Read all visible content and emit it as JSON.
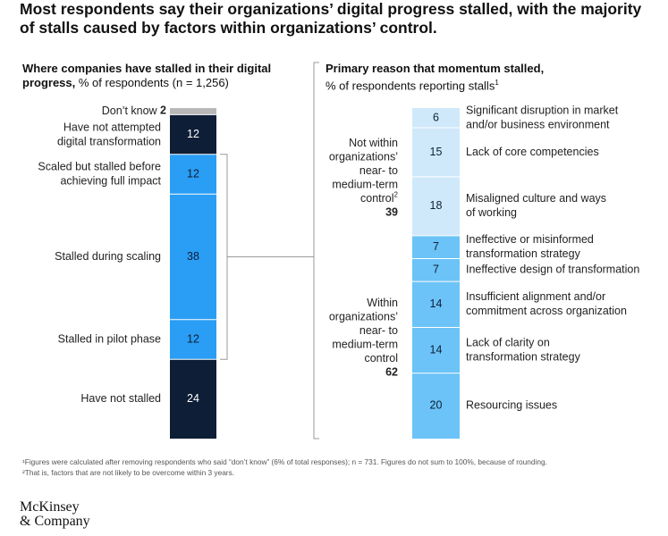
{
  "title": "Most respondents say their organizations’ digital progress stalled, with the majority of stalls caused by factors within organizations’ control.",
  "chart_data": [
    {
      "type": "stacked-bar",
      "title_bold": "Where companies have stalled in their digital progress,",
      "title_rest": " % of respondents (n = 1,256)",
      "segments": [
        {
          "label": [
            "Don’t know"
          ],
          "value": 2,
          "color": "#b8b8b8",
          "text_color": "#111111"
        },
        {
          "label": [
            "Have not attempted",
            "digital transformation"
          ],
          "value": 12,
          "color": "#0e1e36",
          "text_color": "#ffffff"
        },
        {
          "label": [
            "Scaled but stalled before",
            "achieving full impact"
          ],
          "value": 12,
          "color": "#2a9df4",
          "text_color": "#0e1e36"
        },
        {
          "label": [
            "Stalled during scaling"
          ],
          "value": 38,
          "color": "#2a9df4",
          "text_color": "#0e1e36"
        },
        {
          "label": [
            "Stalled in pilot phase"
          ],
          "value": 12,
          "color": "#2a9df4",
          "text_color": "#0e1e36"
        },
        {
          "label": [
            "Have not stalled"
          ],
          "value": 24,
          "color": "#0e1e36",
          "text_color": "#ffffff"
        }
      ]
    },
    {
      "type": "stacked-bar",
      "title_bold": "Primary reason that momentum stalled,",
      "title_rest": "% of respondents reporting stalls",
      "title_sup": "1",
      "groups": [
        {
          "label": [
            "Not within",
            "organizations’",
            "near- to",
            "medium-term",
            "control"
          ],
          "label_sup": "2",
          "total": 39,
          "color": "#cfe9fb"
        },
        {
          "label": [
            "Within",
            "organizations’",
            "near- to",
            "medium-term",
            "control"
          ],
          "total": 62,
          "color": "#6cc3f7"
        }
      ],
      "segments": [
        {
          "group": 0,
          "label": [
            "Significant disruption in market",
            "and/or business environment"
          ],
          "value": 6
        },
        {
          "group": 0,
          "label": [
            "Lack of core competencies"
          ],
          "value": 15
        },
        {
          "group": 0,
          "label": [
            "Misaligned culture and ways",
            "of working"
          ],
          "value": 18
        },
        {
          "group": 1,
          "label": [
            "Ineffective or misinformed",
            "transformation strategy"
          ],
          "value": 7
        },
        {
          "group": 1,
          "label": [
            "Ineffective design of transformation"
          ],
          "value": 7
        },
        {
          "group": 1,
          "label": [
            "Insufficient alignment and/or",
            "commitment across organization"
          ],
          "value": 14
        },
        {
          "group": 1,
          "label": [
            "Lack of clarity on",
            "transformation strategy"
          ],
          "value": 14
        },
        {
          "group": 1,
          "label": [
            "Resourcing issues"
          ],
          "value": 20
        }
      ]
    }
  ],
  "footnotes": [
    "¹Figures were calculated after removing respondents who said “don’t know” (6% of total responses); n = 731. Figures do not sum to 100%, because of rounding.",
    "²That is, factors that are not likely to be overcome within 3 years."
  ],
  "logo": {
    "line1": "McKinsey",
    "line2": "& Company"
  }
}
